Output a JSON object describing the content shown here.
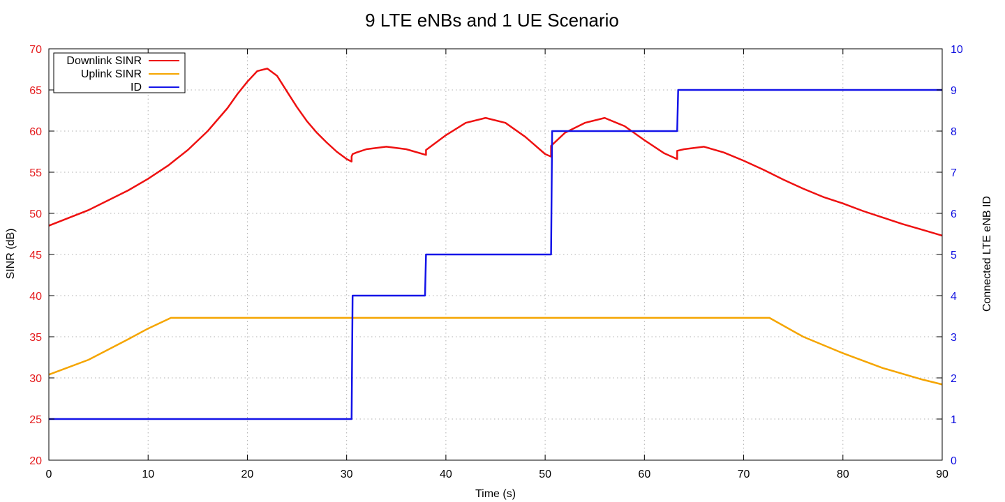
{
  "chart_data": {
    "type": "line",
    "title": "9 LTE eNBs and 1 UE Scenario",
    "xlabel": "Time (s)",
    "ylabel": "SINR (dB)",
    "y2label": "Connected LTE eNB ID",
    "xlim": [
      0,
      90
    ],
    "ylim": [
      20,
      70
    ],
    "y2lim": [
      0,
      10
    ],
    "x_ticks": [
      0,
      10,
      20,
      30,
      40,
      50,
      60,
      70,
      80,
      90
    ],
    "y_ticks": [
      20,
      25,
      30,
      35,
      40,
      45,
      50,
      55,
      60,
      65,
      70
    ],
    "y2_ticks": [
      0,
      1,
      2,
      3,
      4,
      5,
      6,
      7,
      8,
      9,
      10
    ],
    "grid": true,
    "legend_position": "top-left",
    "colors": {
      "left_axis": "#e41a1c",
      "right_axis": "#1010e0",
      "grid": "#b0b0b0"
    },
    "series": [
      {
        "name": "Downlink SINR",
        "color": "#ee1111",
        "axis": "left",
        "x": [
          0,
          4,
          8,
          10,
          12,
          14,
          16,
          18,
          19,
          20,
          21,
          22,
          23,
          24,
          25,
          26,
          27,
          28,
          29,
          30,
          30.5,
          30.5,
          30.6,
          31,
          32,
          34,
          36,
          38,
          38,
          40,
          42,
          44,
          46,
          48,
          50,
          50.6,
          50.6,
          52,
          54,
          56,
          58,
          60,
          62,
          63.3,
          63.3,
          64,
          66,
          68,
          70,
          72,
          74,
          76,
          78,
          80,
          82,
          84,
          86,
          88,
          90
        ],
        "y": [
          48.5,
          50.4,
          52.8,
          54.2,
          55.8,
          57.7,
          60.0,
          62.8,
          64.5,
          66.0,
          67.3,
          67.6,
          66.7,
          64.8,
          62.9,
          61.2,
          59.8,
          58.6,
          57.5,
          56.6,
          56.3,
          56.9,
          57.2,
          57.4,
          57.8,
          58.1,
          57.8,
          57.1,
          57.7,
          59.5,
          61.0,
          61.6,
          61.0,
          59.3,
          57.2,
          56.9,
          58.2,
          59.8,
          61.0,
          61.6,
          60.6,
          58.9,
          57.3,
          56.6,
          57.6,
          57.8,
          58.1,
          57.4,
          56.4,
          55.3,
          54.1,
          53.0,
          52.0,
          51.2,
          50.3,
          49.5,
          48.7,
          48.0,
          47.3
        ]
      },
      {
        "name": "Uplink SINR",
        "color": "#f5a500",
        "axis": "left",
        "x": [
          0,
          4,
          8,
          10,
          12.3,
          20,
          40,
          60,
          72.6,
          76,
          80,
          84,
          88,
          90
        ],
        "y": [
          30.4,
          32.2,
          34.7,
          36.0,
          37.3,
          37.3,
          37.3,
          37.3,
          37.3,
          35.0,
          33.0,
          31.2,
          29.8,
          29.2
        ]
      },
      {
        "name": "ID",
        "color": "#1414e8",
        "axis": "right",
        "x": [
          0,
          30.5,
          30.6,
          37.9,
          38.0,
          50.6,
          50.7,
          63.3,
          63.4,
          90
        ],
        "y": [
          1,
          1,
          4,
          4,
          5,
          5,
          8,
          8,
          9,
          9
        ]
      }
    ]
  }
}
